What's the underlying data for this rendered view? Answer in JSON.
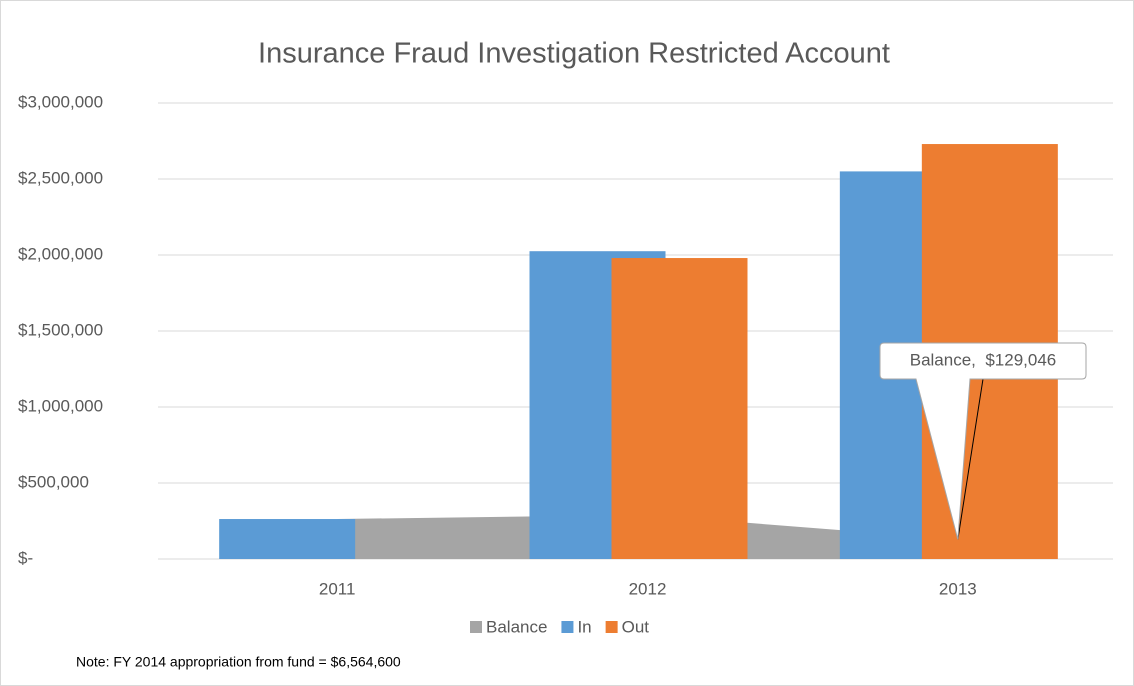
{
  "chart_data": {
    "type": "combo",
    "title": "Insurance Fraud Investigation Restricted Account",
    "categories": [
      "2011",
      "2012",
      "2013"
    ],
    "series": [
      {
        "name": "Balance",
        "kind": "area",
        "color": "#a5a5a5",
        "values": [
          263000,
          290000,
          129046
        ],
        "value_labels": [
          null,
          null,
          "Balance,  $129,046"
        ]
      },
      {
        "name": "In",
        "kind": "bar",
        "color": "#5b9bd5",
        "values": [
          263000,
          2025000,
          2550000
        ]
      },
      {
        "name": "Out",
        "kind": "bar",
        "color": "#ed7d31",
        "values": [
          0,
          1980000,
          2730000
        ]
      }
    ],
    "ylim": [
      0,
      3000000
    ],
    "yticks": [
      {
        "value": 0,
        "label": "$-"
      },
      {
        "value": 500000,
        "label": "$500,000"
      },
      {
        "value": 1000000,
        "label": "$1,000,000"
      },
      {
        "value": 1500000,
        "label": "$1,500,000"
      },
      {
        "value": 2000000,
        "label": "$2,000,000"
      },
      {
        "value": 2500000,
        "label": "$2,500,000"
      },
      {
        "value": 3000000,
        "label": "$3,000,000"
      }
    ],
    "grid": true,
    "legend": "bottom",
    "note": "Note: FY 2014 appropriation from fund = $6,564,600"
  }
}
